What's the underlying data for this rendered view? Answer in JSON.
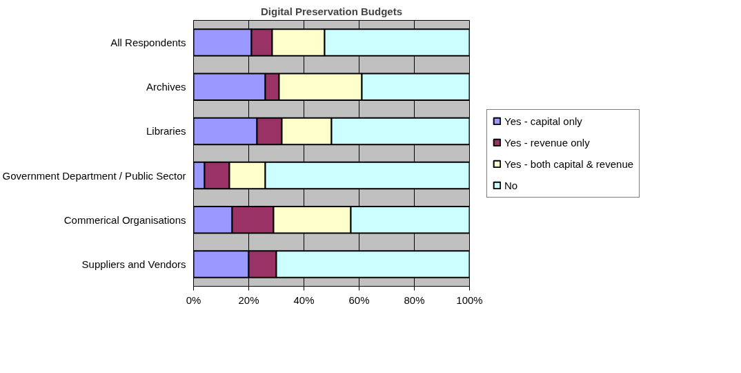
{
  "chart_data": {
    "type": "bar",
    "orientation": "horizontal",
    "stacked": true,
    "title": "Digital Preservation Budgets",
    "categories": [
      "All Respondents",
      "Archives",
      "Libraries",
      "Government Department / Public Sector",
      "Commerical Organisations",
      "Suppliers and Vendors"
    ],
    "series": [
      {
        "name": "Yes - capital only",
        "color": "#9999ff",
        "values": [
          21,
          26,
          23,
          4,
          14,
          20
        ]
      },
      {
        "name": "Yes - revenue only",
        "color": "#993366",
        "values": [
          7.5,
          5,
          9,
          9,
          15,
          10
        ]
      },
      {
        "name": "Yes - both capital & revenue",
        "color": "#ffffcc",
        "values": [
          19,
          30,
          18,
          13,
          28,
          0
        ]
      },
      {
        "name": "No",
        "color": "#ccffff",
        "values": [
          52.5,
          39,
          50,
          74,
          43,
          70
        ]
      }
    ],
    "xlim": [
      0,
      100
    ],
    "xticks": [
      {
        "value": 0,
        "label": "0%"
      },
      {
        "value": 20,
        "label": "20%"
      },
      {
        "value": 40,
        "label": "40%"
      },
      {
        "value": 60,
        "label": "60%"
      },
      {
        "value": 80,
        "label": "80%"
      },
      {
        "value": 100,
        "label": "100%"
      }
    ],
    "grid": "x",
    "legend": "right"
  }
}
